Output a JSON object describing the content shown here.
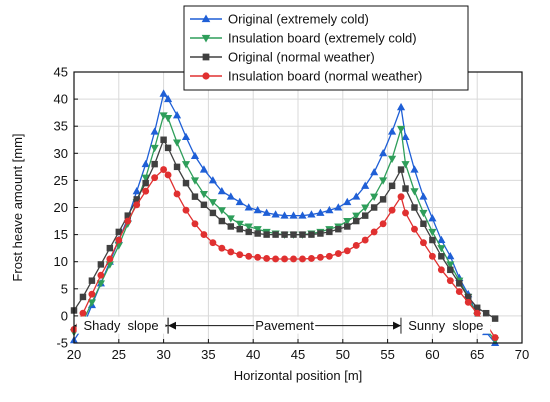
{
  "chart_data": {
    "type": "line",
    "title": "",
    "xlabel": "Horizontal position [m]",
    "ylabel": "Frost heave amount [mm]",
    "xlim": [
      20,
      70
    ],
    "ylim": [
      -5,
      45
    ],
    "xticks": [
      "20",
      "25",
      "30",
      "35",
      "40",
      "45",
      "50",
      "55",
      "60",
      "65",
      "70"
    ],
    "yticks": [
      "-5",
      "0",
      "5",
      "10",
      "15",
      "20",
      "25",
      "30",
      "35",
      "40",
      "45"
    ],
    "grid": true,
    "legend_position": "top-center",
    "series": [
      {
        "name": "Original (extremely cold)",
        "color": "#1f5fd6",
        "marker": "triangle-up",
        "x": [
          20,
          21,
          22,
          23,
          24,
          25,
          26,
          27,
          28,
          29,
          30,
          30.5,
          31.5,
          32.5,
          33.5,
          34.5,
          35.5,
          36.5,
          37.5,
          38.5,
          39.5,
          40.5,
          41.5,
          42.5,
          43.5,
          44.5,
          45.5,
          46.5,
          47.5,
          48.5,
          49.5,
          50.5,
          51.5,
          52.5,
          53.5,
          54.5,
          55.5,
          56.5,
          57,
          58,
          59,
          60,
          61,
          62,
          63,
          64,
          65,
          66,
          67
        ],
        "y": [
          -4.5,
          -2,
          2,
          6,
          10,
          14,
          18,
          23,
          28,
          34,
          41,
          40,
          37,
          33,
          29.5,
          27,
          25,
          23,
          22,
          21,
          20,
          19.5,
          19,
          18.7,
          18.5,
          18.5,
          18.5,
          18.7,
          19,
          19.5,
          20,
          21,
          22,
          24,
          26.5,
          30,
          34,
          38.5,
          33,
          27,
          22,
          18,
          14,
          11,
          7,
          4,
          0,
          -3,
          -5
        ]
      },
      {
        "name": "Insulation board (extremely cold)",
        "color": "#2e9e5a",
        "marker": "triangle-down",
        "x": [
          20,
          21,
          22,
          23,
          24,
          25,
          26,
          27,
          28,
          29,
          30,
          30.5,
          31.5,
          32.5,
          33.5,
          34.5,
          35.5,
          36.5,
          37.5,
          38.5,
          39.5,
          40.5,
          41.5,
          42.5,
          43.5,
          44.5,
          45.5,
          46.5,
          47.5,
          48.5,
          49.5,
          50.5,
          51.5,
          52.5,
          53.5,
          54.5,
          55.5,
          56.5,
          57,
          58,
          59,
          60,
          61,
          62,
          63,
          64,
          65,
          66,
          67
        ],
        "y": [
          -3,
          -1,
          2.5,
          6,
          9.5,
          13,
          17,
          21,
          25.5,
          31,
          37,
          36.5,
          32,
          28,
          25,
          22.5,
          21,
          19.5,
          18,
          17,
          16.5,
          16,
          15.5,
          15.2,
          15,
          15,
          15,
          15.2,
          15.5,
          16,
          16.5,
          17.5,
          18.5,
          20,
          22,
          25,
          29,
          34.5,
          28,
          23,
          19,
          15.5,
          12.5,
          9.5,
          6.5,
          3.5,
          0,
          -2.5,
          -4.5
        ]
      },
      {
        "name": "Original (normal weather)",
        "color": "#404040",
        "marker": "square",
        "x": [
          20,
          21,
          22,
          23,
          24,
          25,
          26,
          27,
          28,
          29,
          30,
          30.5,
          31.5,
          32.5,
          33.5,
          34.5,
          35.5,
          36.5,
          37.5,
          38.5,
          39.5,
          40.5,
          41.5,
          42.5,
          43.5,
          44.5,
          45.5,
          46.5,
          47.5,
          48.5,
          49.5,
          50.5,
          51.5,
          52.5,
          53.5,
          54.5,
          55.5,
          56.5,
          57,
          58,
          59,
          60,
          61,
          62,
          63,
          64,
          65,
          66,
          67
        ],
        "y": [
          1,
          3.5,
          6.5,
          9.5,
          12.5,
          15.5,
          18.5,
          21.5,
          24.5,
          28,
          32.5,
          31,
          27.5,
          24.5,
          22,
          20.5,
          19,
          17.5,
          16.5,
          16,
          15.5,
          15.2,
          15,
          15,
          15,
          15,
          15,
          15,
          15.2,
          15.5,
          16,
          16.5,
          17.5,
          18.5,
          20,
          21.5,
          24,
          27,
          23.5,
          20,
          17,
          14,
          11,
          8.5,
          6,
          3.5,
          1.5,
          0.5,
          -0.5
        ]
      },
      {
        "name": "Insulation board (normal weather)",
        "color": "#e03030",
        "marker": "circle",
        "x": [
          20,
          21,
          22,
          23,
          24,
          25,
          26,
          27,
          28,
          29,
          30,
          30.5,
          31.5,
          32.5,
          33.5,
          34.5,
          35.5,
          36.5,
          37.5,
          38.5,
          39.5,
          40.5,
          41.5,
          42.5,
          43.5,
          44.5,
          45.5,
          46.5,
          47.5,
          48.5,
          49.5,
          50.5,
          51.5,
          52.5,
          53.5,
          54.5,
          55.5,
          56.5,
          57,
          58,
          59,
          60,
          61,
          62,
          63,
          64,
          65,
          66,
          67
        ],
        "y": [
          -2.5,
          0.5,
          4,
          7.5,
          10.5,
          14,
          17.5,
          20.5,
          23,
          25.5,
          27,
          26,
          22.5,
          19.5,
          17,
          15,
          13.5,
          12.5,
          11.8,
          11.3,
          11,
          10.8,
          10.6,
          10.5,
          10.5,
          10.5,
          10.5,
          10.6,
          10.8,
          11,
          11.5,
          12,
          13,
          14,
          15.5,
          17,
          19.5,
          22,
          19,
          16,
          13.5,
          11,
          8.5,
          6.5,
          4.5,
          2.5,
          0.5,
          -1.5,
          -4
        ]
      }
    ],
    "regions": [
      {
        "label": "Shady  slope",
        "x_start": 20,
        "x_end": 30.5
      },
      {
        "label": "Pavement",
        "x_start": 30.5,
        "x_end": 56.5
      },
      {
        "label": "Sunny  slope",
        "x_start": 56.5,
        "x_end": 66.5
      }
    ],
    "region_divider_x": [
      30.5,
      56.5
    ]
  }
}
